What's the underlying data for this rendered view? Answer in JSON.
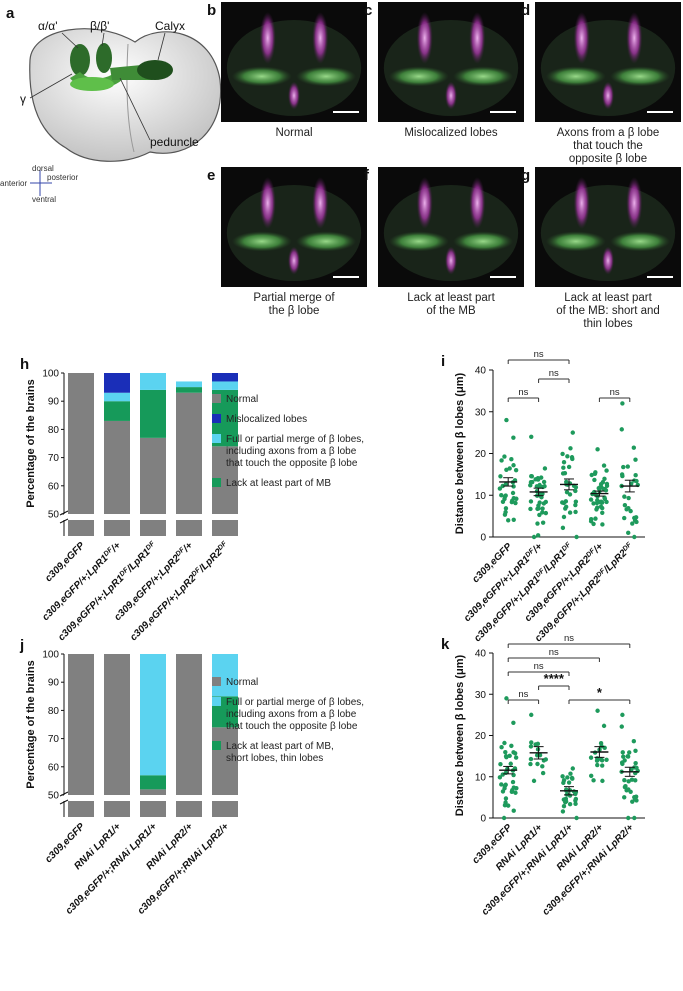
{
  "panels": {
    "a": {
      "label": "a",
      "labels": {
        "ab": "α/α'",
        "bb": "β/β'",
        "calyx": "Calyx",
        "gamma": "γ",
        "peduncle": "peduncle"
      },
      "compass": {
        "dorsal": "dorsal",
        "ventral": "ventral",
        "anterior": "anterior",
        "posterior": "posterior"
      }
    },
    "b": {
      "label": "b",
      "caption": [
        "Normal"
      ]
    },
    "c": {
      "label": "c",
      "caption": [
        "Mislocalized lobes"
      ]
    },
    "d": {
      "label": "d",
      "caption": [
        "Axons from a β lobe",
        "that touch the",
        "opposite β lobe"
      ]
    },
    "e": {
      "label": "e",
      "caption": [
        "Partial merge of",
        "the β lobe"
      ]
    },
    "f": {
      "label": "f",
      "caption": [
        "Lack at least part",
        "of the MB"
      ]
    },
    "g": {
      "label": "g",
      "caption": [
        "Lack at least part",
        "of the MB: short and",
        "thin lobes"
      ]
    },
    "h": {
      "label": "h"
    },
    "i": {
      "label": "i"
    },
    "j": {
      "label": "j"
    },
    "k": {
      "label": "k"
    }
  },
  "colors": {
    "normal": "#808080",
    "mislocalized": "#1a2eb8",
    "merge": "#5bd3f0",
    "lack": "#169a5a",
    "dots": "#1e9a5c",
    "green_signal": "#44b34a",
    "magenta_signal": "#d63ad6"
  },
  "chart_data": [
    {
      "id": "h",
      "type": "bar",
      "stacked": true,
      "ylabel": "Percentage of the brains",
      "yticks": [
        "50",
        "60",
        "70",
        "80",
        "90",
        "100"
      ],
      "ylim": [
        50,
        100
      ],
      "axis_break": true,
      "categories": [
        {
          "pre": "c309,eGFP",
          "sup": "",
          "post": ""
        },
        {
          "pre": "c309,eGFP/+;LpR1",
          "sup": "DF",
          "post": "/+"
        },
        {
          "pre": "c309,eGFP/+;LpR1",
          "sup": "DF",
          "post": "/LpR1",
          "sup2": "DF"
        },
        {
          "pre": "c309,eGFP/+;LpR2",
          "sup": "DF",
          "post": "/+"
        },
        {
          "pre": "c309,eGFP/+;LpR2",
          "sup": "DF",
          "post": "/LpR2",
          "sup2": "DF"
        }
      ],
      "series": [
        {
          "name": "Normal",
          "color_key": "normal",
          "values": [
            100,
            83,
            77,
            93,
            74
          ]
        },
        {
          "name": "Lack at least part of MB",
          "color_key": "lack",
          "values": [
            0,
            7,
            17,
            2,
            20
          ]
        },
        {
          "name": "Full or partial merge of β lobes, including axons from a β lobe that touch the opposite β lobe",
          "color_key": "merge",
          "values": [
            0,
            3,
            6,
            2,
            3
          ]
        },
        {
          "name": "Mislocalized lobes",
          "color_key": "mislocalized",
          "values": [
            0,
            7,
            0,
            0,
            3
          ]
        }
      ],
      "legend": [
        {
          "name": "Normal",
          "color_key": "normal",
          "lines": [
            "Normal"
          ]
        },
        {
          "name": "Mislocalized lobes",
          "color_key": "mislocalized",
          "lines": [
            "Mislocalized lobes"
          ]
        },
        {
          "name": "Full or partial merge of β lobes",
          "color_key": "merge",
          "lines": [
            "Full or partial merge of β lobes,",
            "including axons from a β lobe",
            "that touch the opposite β lobe"
          ]
        },
        {
          "name": "Lack at least part of MB",
          "color_key": "lack",
          "lines": [
            "Lack at least part of MB"
          ]
        }
      ]
    },
    {
      "id": "i",
      "type": "scatter",
      "ylabel": "Distance between β lobes (μm)",
      "ylim": [
        0,
        40
      ],
      "yticks": [
        "0",
        "10",
        "20",
        "30",
        "40"
      ],
      "categories": [
        {
          "pre": "c309,eGFP",
          "sup": "",
          "post": ""
        },
        {
          "pre": "c309,eGFP/+;LpR1",
          "sup": "DF",
          "post": "/+"
        },
        {
          "pre": "c309,eGFP/+;LpR1",
          "sup": "DF",
          "post": "/LpR1",
          "sup2": "DF"
        },
        {
          "pre": "c309,eGFP/+;LpR2",
          "sup": "DF",
          "post": "/+"
        },
        {
          "pre": "c309,eGFP/+;LpR2",
          "sup": "DF",
          "post": "/LpR2",
          "sup2": "DF"
        }
      ],
      "groups": [
        {
          "mean": 13.2,
          "sem": 1.0,
          "n": 32,
          "min": 4,
          "max": 28
        },
        {
          "mean": 10.8,
          "sem": 0.9,
          "n": 40,
          "min": 0,
          "max": 24
        },
        {
          "mean": 12.6,
          "sem": 1.3,
          "n": 32,
          "min": 0,
          "max": 25
        },
        {
          "mean": 10.4,
          "sem": 0.6,
          "n": 44,
          "min": 3,
          "max": 21
        },
        {
          "mean": 12.2,
          "sem": 1.4,
          "n": 28,
          "min": 1,
          "max": 32
        }
      ],
      "comparisons": [
        {
          "a": 0,
          "b": 1,
          "label": "ns",
          "level": 1
        },
        {
          "a": 1,
          "b": 2,
          "label": "ns",
          "level": 2
        },
        {
          "a": 3,
          "b": 4,
          "label": "ns",
          "level": 1
        },
        {
          "a": 0,
          "b": 2,
          "label": "ns",
          "level": 3
        }
      ]
    },
    {
      "id": "j",
      "type": "bar",
      "stacked": true,
      "ylabel": "Percentage of the brains",
      "yticks": [
        "50",
        "60",
        "70",
        "80",
        "90",
        "100"
      ],
      "ylim": [
        50,
        100
      ],
      "axis_break": true,
      "categories": [
        {
          "pre": "c309,eGFP",
          "sup": "",
          "post": ""
        },
        {
          "pre": "RNAi LpR1/+",
          "sup": "",
          "post": ""
        },
        {
          "pre": "c309,eGFP/+;RNAi LpR1/+",
          "sup": "",
          "post": ""
        },
        {
          "pre": "RNAi LpR2/+",
          "sup": "",
          "post": ""
        },
        {
          "pre": "c309,eGFP/+;RNAi LpR2/+",
          "sup": "",
          "post": ""
        }
      ],
      "series": [
        {
          "name": "Normal",
          "color_key": "normal",
          "values": [
            100,
            100,
            52,
            100,
            74
          ]
        },
        {
          "name": "Lack at least part of MB, short lobes, thin lobes",
          "color_key": "lack",
          "values": [
            0,
            0,
            5,
            0,
            11
          ]
        },
        {
          "name": "Full or partial merge of β lobes, including axons from a β lobe that touch the opposite β lobe",
          "color_key": "merge",
          "values": [
            0,
            0,
            43,
            0,
            15
          ]
        }
      ],
      "legend": [
        {
          "name": "Normal",
          "color_key": "normal",
          "lines": [
            "Normal"
          ]
        },
        {
          "name": "Full or partial merge of β lobes",
          "color_key": "merge",
          "lines": [
            "Full or partial merge of β lobes,",
            "including axons from a β lobe",
            "that touch the opposite β lobe"
          ]
        },
        {
          "name": "Lack at least part of MB",
          "color_key": "lack",
          "lines": [
            "Lack at least part of MB,",
            "short lobes, thin lobes"
          ]
        }
      ]
    },
    {
      "id": "k",
      "type": "scatter",
      "ylabel": "Distance between β lobes (μm)",
      "ylim": [
        0,
        40
      ],
      "yticks": [
        "0",
        "10",
        "20",
        "30",
        "40"
      ],
      "categories": [
        {
          "pre": "c309,eGFP",
          "sup": "",
          "post": ""
        },
        {
          "pre": "RNAi LpR1/+",
          "sup": "",
          "post": ""
        },
        {
          "pre": "c309,eGFP/+;RNAi LpR1/+",
          "sup": "",
          "post": ""
        },
        {
          "pre": "RNAi LpR2/+",
          "sup": "",
          "post": ""
        },
        {
          "pre": "c309,eGFP/+;RNAi LpR2/+",
          "sup": "",
          "post": ""
        }
      ],
      "groups": [
        {
          "mean": 11.6,
          "sem": 0.9,
          "n": 38,
          "min": 3,
          "max": 29
        },
        {
          "mean": 15.8,
          "sem": 1.5,
          "n": 16,
          "min": 9,
          "max": 25
        },
        {
          "mean": 6.6,
          "sem": 1.0,
          "n": 28,
          "min": 0,
          "max": 12
        },
        {
          "mean": 16.0,
          "sem": 1.3,
          "n": 18,
          "min": 9,
          "max": 26
        },
        {
          "mean": 11.2,
          "sem": 1.1,
          "n": 36,
          "min": 0,
          "max": 25
        }
      ],
      "comparisons": [
        {
          "a": 0,
          "b": 1,
          "label": "ns",
          "level": 1
        },
        {
          "a": 1,
          "b": 2,
          "label": "****",
          "level": 2
        },
        {
          "a": 2,
          "b": 4,
          "label": "*",
          "level": 1
        },
        {
          "a": 0,
          "b": 2,
          "label": "ns",
          "level": 3
        },
        {
          "a": 0,
          "b": 3,
          "label": "ns",
          "level": 4
        },
        {
          "a": 0,
          "b": 4,
          "label": "ns",
          "level": 5
        }
      ]
    }
  ]
}
